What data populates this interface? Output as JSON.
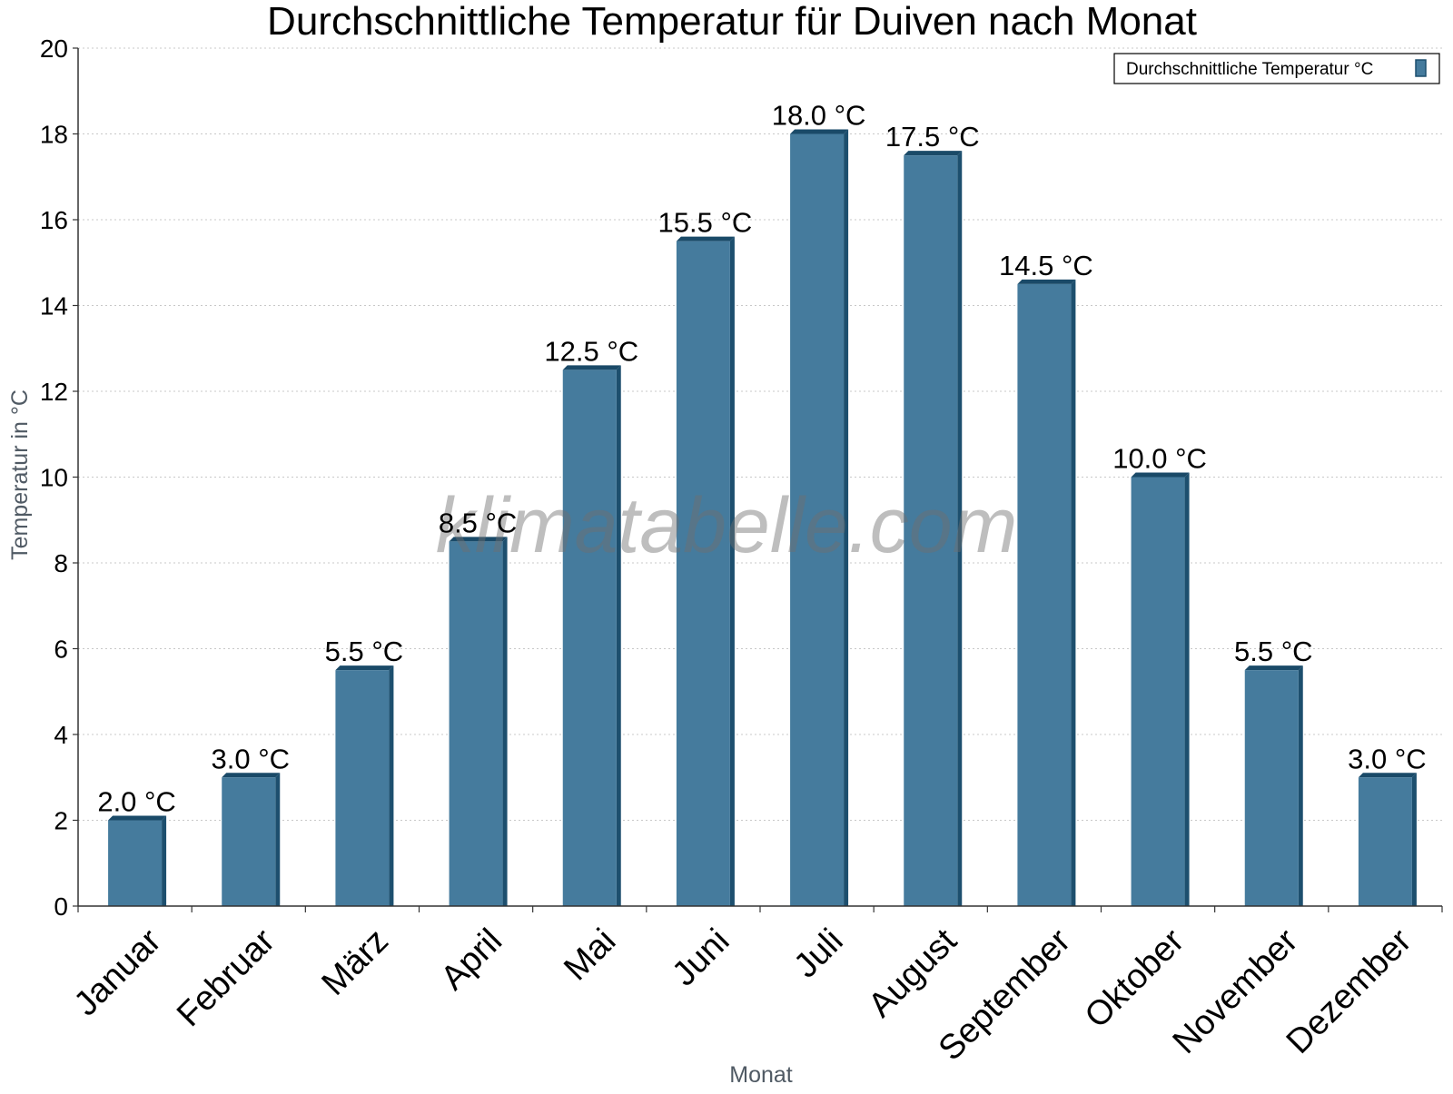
{
  "colors": {
    "bar_face": "#457b9d",
    "bar_side": "#1d4f6e",
    "bar_top": "#1a4a68",
    "grid": "#c8c8c8",
    "axis": "#333333"
  },
  "watermark": "klimatabelle.com",
  "chart_data": {
    "type": "bar",
    "title": "Durchschnittliche Temperatur für Duiven nach Monat",
    "xlabel": "Monat",
    "ylabel": "Temperatur in °C",
    "ylim": [
      0,
      20
    ],
    "yticks": [
      0,
      2,
      4,
      6,
      8,
      10,
      12,
      14,
      16,
      18,
      20
    ],
    "grid": true,
    "legend": {
      "position": "top-right",
      "entries": [
        "Durchschnittliche Temperatur °C"
      ]
    },
    "categories": [
      "Januar",
      "Februar",
      "März",
      "April",
      "Mai",
      "Juni",
      "Juli",
      "August",
      "September",
      "Oktober",
      "November",
      "Dezember"
    ],
    "series": [
      {
        "name": "Durchschnittliche Temperatur °C",
        "values": [
          2.0,
          3.0,
          5.5,
          8.5,
          12.5,
          15.5,
          18.0,
          17.5,
          14.5,
          10.0,
          5.5,
          3.0
        ],
        "labels": [
          "2.0 °C",
          "3.0 °C",
          "5.5 °C",
          "8.5 °C",
          "12.5 °C",
          "15.5 °C",
          "18.0 °C",
          "17.5 °C",
          "14.5 °C",
          "10.0 °C",
          "5.5 °C",
          "3.0 °C"
        ]
      }
    ]
  }
}
